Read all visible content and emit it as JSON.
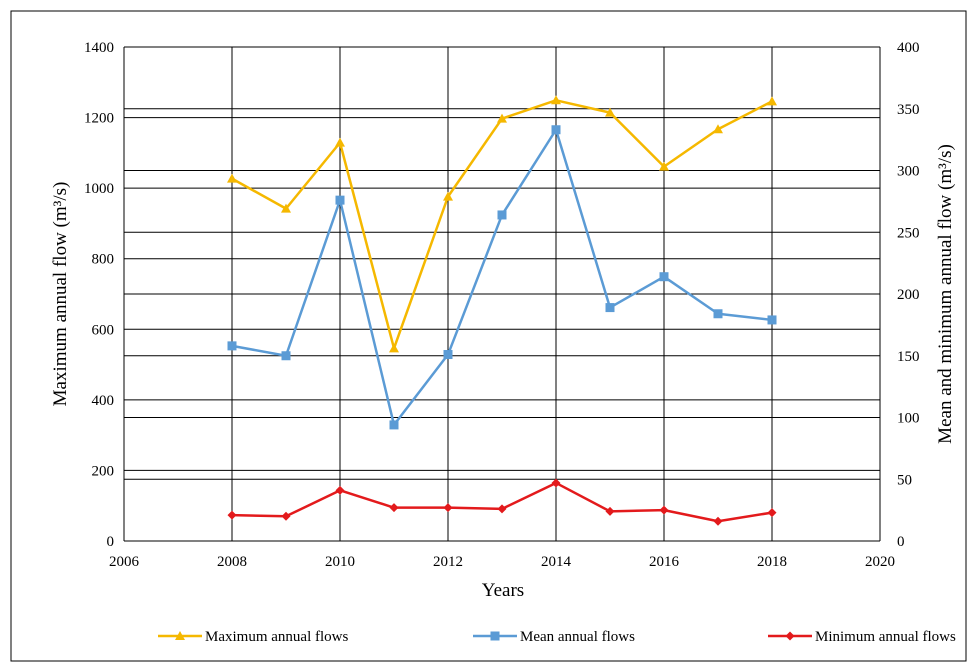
{
  "chart_data": {
    "type": "line",
    "title": "",
    "xlabel": "Years",
    "ylabel_left": "Maximum annual flow (m³/s)",
    "ylabel_right": "Mean and minimum annual flow (m³/s)",
    "xlim": [
      2006,
      2020
    ],
    "x_ticks": [
      "2006",
      "2008",
      "2010",
      "2012",
      "2014",
      "2016",
      "2018",
      "2020"
    ],
    "ylim_left": [
      0,
      1400
    ],
    "y_ticks_left": [
      "0",
      "200",
      "400",
      "600",
      "800",
      "1000",
      "1200",
      "1400"
    ],
    "ylim_right": [
      0,
      400
    ],
    "y_ticks_right": [
      "0",
      "50",
      "100",
      "150",
      "200",
      "250",
      "300",
      "350",
      "400"
    ],
    "grid": true,
    "legend_position": "bottom",
    "x": [
      2008,
      2009,
      2010,
      2011,
      2012,
      2013,
      2014,
      2015,
      2016,
      2017,
      2018
    ],
    "series": [
      {
        "name": "Maximum annual flows",
        "axis": "left",
        "color": "#F5B800",
        "marker": "triangle",
        "values": [
          1027,
          942,
          1129,
          546,
          976,
          1197,
          1249,
          1214,
          1061,
          1167,
          1246
        ]
      },
      {
        "name": "Mean annual flows",
        "axis": "right",
        "color": "#5B9BD5",
        "marker": "square",
        "values": [
          158,
          150,
          276,
          94,
          151,
          264,
          333,
          189,
          214,
          184,
          179
        ]
      },
      {
        "name": "Minimum annual flows",
        "axis": "right",
        "color": "#E31A1C",
        "marker": "diamond",
        "values": [
          21,
          20,
          41,
          27,
          27,
          26,
          47,
          24,
          25,
          16,
          23
        ]
      }
    ]
  }
}
